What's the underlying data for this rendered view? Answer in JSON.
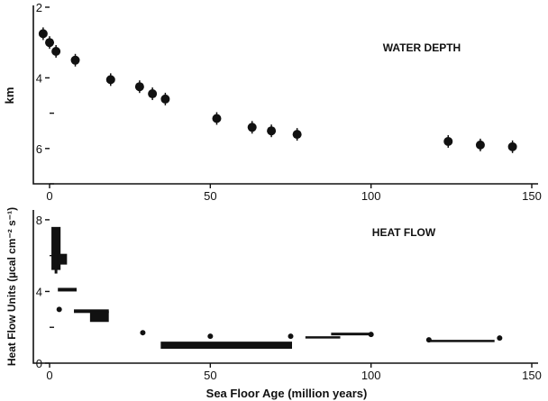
{
  "chart_data": [
    {
      "type": "scatter",
      "title": "WATER DEPTH",
      "xlabel": "",
      "ylabel": "km",
      "xlim": [
        0,
        150
      ],
      "ylim": [
        2,
        7
      ],
      "y_inverted": true,
      "xticks": [
        "0",
        "50",
        "100",
        "150"
      ],
      "yticks": [
        "2",
        "4",
        "6"
      ],
      "series": [
        {
          "points": [
            {
              "x": -2,
              "y": 2.75
            },
            {
              "x": 0,
              "y": 3.0
            },
            {
              "x": 2,
              "y": 3.25
            },
            {
              "x": 8,
              "y": 3.5
            },
            {
              "x": 19,
              "y": 4.05
            },
            {
              "x": 28,
              "y": 4.25
            },
            {
              "x": 32,
              "y": 4.45
            },
            {
              "x": 36,
              "y": 4.6
            },
            {
              "x": 52,
              "y": 5.15
            },
            {
              "x": 63,
              "y": 5.4
            },
            {
              "x": 69,
              "y": 5.5
            },
            {
              "x": 77,
              "y": 5.6
            },
            {
              "x": 124,
              "y": 5.8
            },
            {
              "x": 134,
              "y": 5.9
            },
            {
              "x": 144,
              "y": 5.95
            }
          ]
        }
      ]
    },
    {
      "type": "scatter",
      "title": "HEAT FLOW",
      "xlabel": "Sea Floor Age (million years)",
      "ylabel": "Heat Flow Units (µcal cm⁻² s⁻¹)",
      "xlim": [
        0,
        150
      ],
      "ylim": [
        0,
        9
      ],
      "xticks": [
        "0",
        "50",
        "100",
        "150"
      ],
      "yticks": [
        "0",
        "4",
        "8"
      ],
      "series": [
        {
          "bands": [
            {
              "x": [
                1,
                3
              ],
              "y": [
                5.2,
                7.6
              ]
            },
            {
              "x": 2,
              "y": [
                5.0,
                6.2
              ]
            },
            {
              "x": [
                3,
                5
              ],
              "y": [
                5.5,
                6.1
              ]
            },
            {
              "x": [
                3,
                8
              ],
              "y": [
                4.0,
                4.2
              ]
            },
            {
              "x": [
                8,
                18
              ],
              "y": [
                2.8,
                3.0
              ]
            },
            {
              "x": [
                13,
                18
              ],
              "y": [
                2.3,
                2.9
              ]
            },
            {
              "x": [
                35,
                75
              ],
              "y": [
                0.8,
                1.2
              ]
            },
            {
              "x": [
                80,
                90
              ],
              "y": [
                1.4,
                1.5
              ]
            },
            {
              "x": [
                88,
                100
              ],
              "y": [
                1.55,
                1.7
              ]
            },
            {
              "x": [
                118,
                138
              ],
              "y": [
                1.2,
                1.3
              ]
            }
          ],
          "points": [
            {
              "x": 3,
              "y": 3.0
            },
            {
              "x": 29,
              "y": 1.7
            },
            {
              "x": 50,
              "y": 1.5
            },
            {
              "x": 75,
              "y": 1.5
            },
            {
              "x": 100,
              "y": 1.6
            },
            {
              "x": 118,
              "y": 1.3
            },
            {
              "x": 140,
              "y": 1.4
            }
          ]
        }
      ]
    }
  ]
}
